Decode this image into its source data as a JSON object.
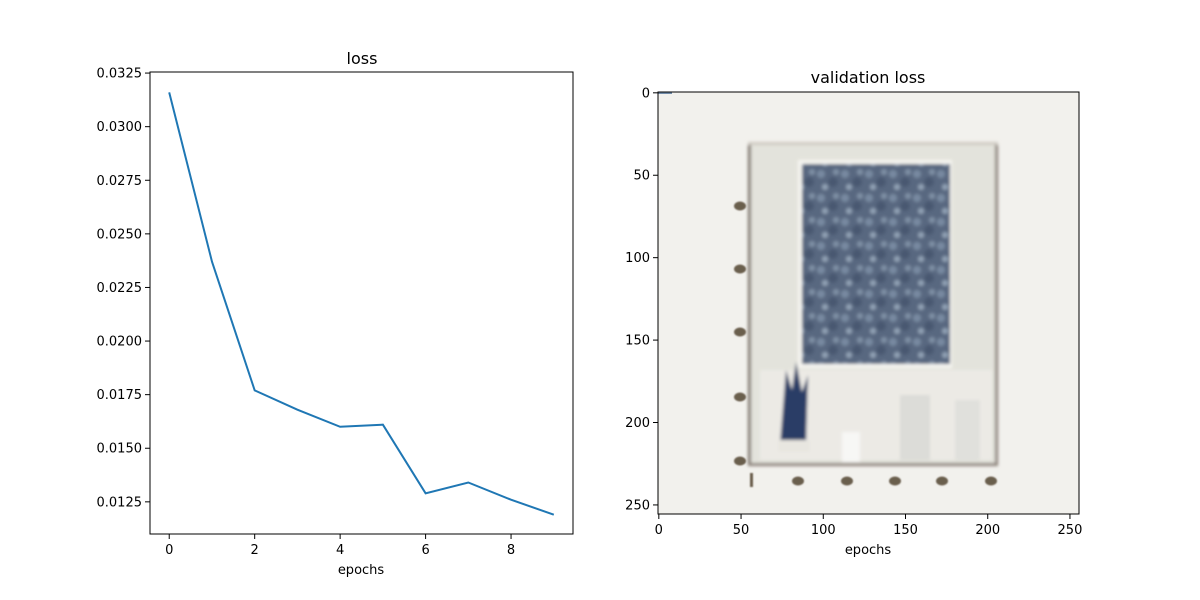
{
  "chart_data": [
    {
      "type": "line",
      "title": "loss",
      "xlabel": "epochs",
      "ylabel": "",
      "xlim": [
        -0.45,
        9.45
      ],
      "ylim": [
        0.011,
        0.03255
      ],
      "x_ticks": [
        "0",
        "2",
        "4",
        "6",
        "8"
      ],
      "x_tick_values": [
        0,
        2,
        4,
        6,
        8
      ],
      "y_ticks": [
        "0.0125",
        "0.0150",
        "0.0175",
        "0.0200",
        "0.0225",
        "0.0250",
        "0.0275",
        "0.0300",
        "0.0325"
      ],
      "y_tick_values": [
        0.0125,
        0.015,
        0.0175,
        0.02,
        0.0225,
        0.025,
        0.0275,
        0.03,
        0.0325
      ],
      "grid": false,
      "series": [
        {
          "color": "#1f77b4",
          "x": [
            0,
            1,
            2,
            3,
            4,
            5,
            6,
            7,
            8,
            9
          ],
          "values": [
            0.0316,
            0.0237,
            0.0177,
            0.0168,
            0.016,
            0.0161,
            0.0129,
            0.0134,
            0.0126,
            0.0119
          ]
        }
      ]
    },
    {
      "type": "image",
      "title": "validation loss",
      "xlabel": "epochs",
      "ylabel": "",
      "xlim": [
        -0.5,
        255.5
      ],
      "ylim": [
        255.5,
        -0.5
      ],
      "x_ticks": [
        "0",
        "50",
        "100",
        "150",
        "200",
        "250"
      ],
      "x_tick_values": [
        0,
        50,
        100,
        150,
        200,
        250
      ],
      "y_ticks": [
        "0",
        "50",
        "100",
        "150",
        "200",
        "250"
      ],
      "y_tick_values": [
        0,
        50,
        100,
        150,
        200,
        250
      ],
      "image_description_icon": "framed-photo-of-dark-blue-canvas-with-plant",
      "colors": {
        "background": "#f2f1ed",
        "frame": "#e3e3dd",
        "frame_edge": "#7a7068",
        "canvas": "#5a6b80",
        "canvas_light": "#9aa7b5",
        "plant": "#2c3e66",
        "dots": "#6b5f4e"
      }
    }
  ]
}
